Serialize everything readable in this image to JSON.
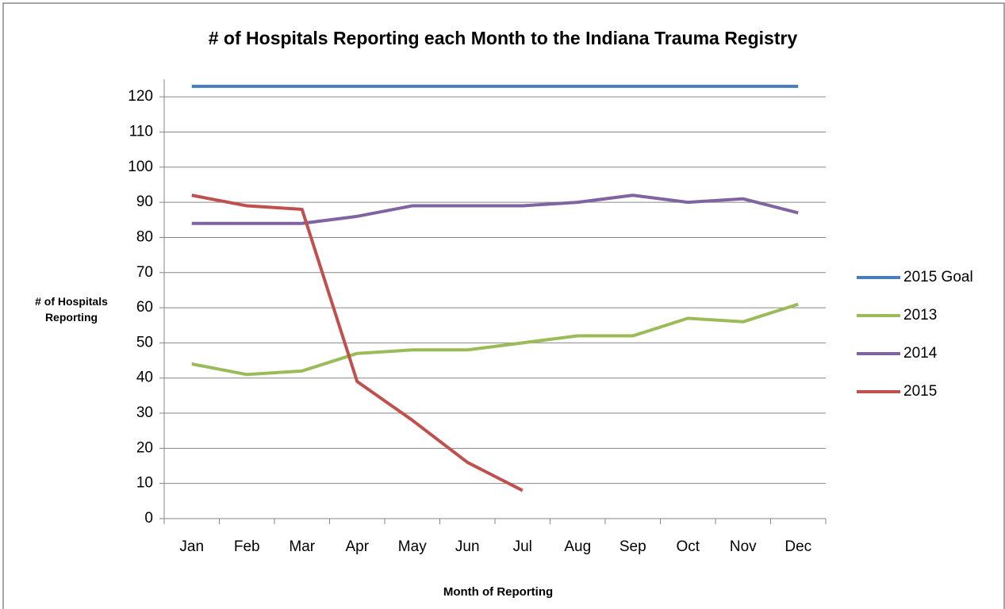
{
  "chart_data": {
    "type": "line",
    "title": "# of Hospitals Reporting each Month to the Indiana Trauma Registry",
    "x_label": "Month of Reporting",
    "y_label": "# of Hospitals Reporting",
    "categories": [
      "Jan",
      "Feb",
      "Mar",
      "Apr",
      "May",
      "Jun",
      "Jul",
      "Aug",
      "Sep",
      "Oct",
      "Nov",
      "Dec"
    ],
    "series": [
      {
        "name": "2015 Goal",
        "color": "#4a7ebb",
        "values": [
          123,
          123,
          123,
          123,
          123,
          123,
          123,
          123,
          123,
          123,
          123,
          123
        ]
      },
      {
        "name": "2013",
        "color": "#9bbb59",
        "values": [
          44,
          41,
          42,
          47,
          48,
          48,
          50,
          52,
          52,
          57,
          56,
          61
        ]
      },
      {
        "name": "2014",
        "color": "#8064a2",
        "values": [
          84,
          84,
          84,
          86,
          89,
          89,
          89,
          90,
          92,
          90,
          91,
          87
        ]
      },
      {
        "name": "2015",
        "color": "#c0504d",
        "values": [
          92,
          89,
          88,
          39,
          28,
          16,
          8,
          null,
          null,
          null,
          null,
          null
        ]
      }
    ],
    "ylim": [
      0,
      125
    ],
    "yticks": [
      0,
      10,
      20,
      30,
      40,
      50,
      60,
      70,
      80,
      90,
      100,
      110,
      120
    ],
    "grid": true,
    "legend": "right"
  }
}
